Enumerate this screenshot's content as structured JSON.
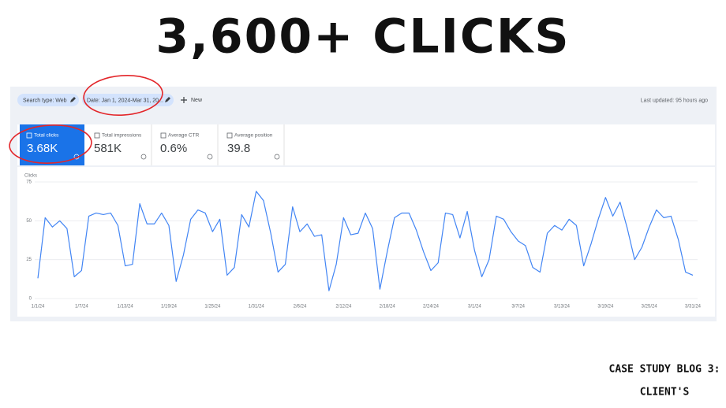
{
  "header": {
    "title": "3,600+ CLICKS"
  },
  "toolbar": {
    "search_type": "Search type: Web",
    "date": "Date: Jan 1, 2024-Mar 31, 20...",
    "new": "New",
    "last_updated": "Last updated: 95 hours ago"
  },
  "metrics": [
    {
      "label": "Total clicks",
      "value": "3.68K"
    },
    {
      "label": "Total impressions",
      "value": "581K"
    },
    {
      "label": "Average CTR",
      "value": "0.6%"
    },
    {
      "label": "Average position",
      "value": "39.8"
    }
  ],
  "footer": [
    "CASE STUDY BLOG 3:",
    "CLIENT'S"
  ],
  "chart_data": {
    "type": "line",
    "y_label": "Clicks",
    "color": "#4285f4",
    "grid": true,
    "ylim": [
      0,
      75
    ],
    "yticks": [
      0,
      25,
      50,
      75
    ],
    "categories": [
      "1/1/24",
      null,
      null,
      null,
      null,
      null,
      "1/7/24",
      null,
      null,
      null,
      null,
      null,
      "1/13/24",
      null,
      null,
      null,
      null,
      null,
      "1/19/24",
      null,
      null,
      null,
      null,
      null,
      "1/25/24",
      null,
      null,
      null,
      null,
      null,
      "1/31/24",
      null,
      null,
      null,
      null,
      null,
      "2/6/24",
      null,
      null,
      null,
      null,
      null,
      "2/12/24",
      null,
      null,
      null,
      null,
      null,
      "2/18/24",
      null,
      null,
      null,
      null,
      null,
      "2/24/24",
      null,
      null,
      null,
      null,
      null,
      "3/1/24",
      null,
      null,
      null,
      null,
      null,
      "3/7/24",
      null,
      null,
      null,
      null,
      null,
      "3/13/24",
      null,
      null,
      null,
      null,
      null,
      "3/19/24",
      null,
      null,
      null,
      null,
      null,
      "3/25/24",
      null,
      null,
      null,
      null,
      null,
      "3/31/24"
    ],
    "values": [
      13,
      52,
      46,
      50,
      45,
      14,
      18,
      53,
      55,
      54,
      55,
      47,
      21,
      22,
      61,
      48,
      48,
      55,
      47,
      11,
      28,
      51,
      57,
      55,
      43,
      51,
      15,
      20,
      54,
      46,
      69,
      63,
      42,
      17,
      22,
      59,
      43,
      48,
      40,
      41,
      5,
      22,
      52,
      41,
      42,
      55,
      45,
      6,
      30,
      52,
      55,
      55,
      44,
      30,
      18,
      23,
      55,
      54,
      39,
      56,
      31,
      14,
      25,
      53,
      51,
      43,
      37,
      34,
      20,
      17,
      42,
      47,
      44,
      51,
      47,
      21,
      35,
      51,
      65,
      53,
      62,
      45,
      25,
      33,
      46,
      57,
      52,
      53,
      38,
      17,
      15
    ]
  }
}
